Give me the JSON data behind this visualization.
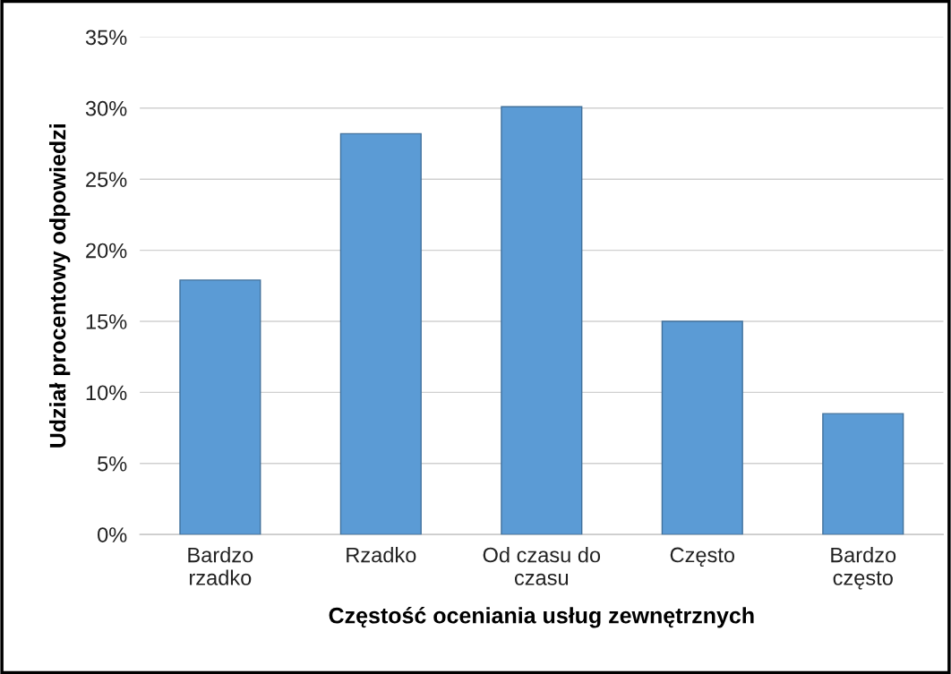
{
  "chart_data": {
    "type": "bar",
    "xlabel": "Częstość oceniania usług zewnętrznych",
    "ylabel": "Udział procentowy odpowiedzi",
    "categories": [
      "Bardzo\nrzadko",
      "Rzadko",
      "Od czasu do\nczasu",
      "Często",
      "Bardzo\nczęsto"
    ],
    "values": [
      17.9,
      28.2,
      30.1,
      15.0,
      8.5
    ],
    "color": "#5b9bd5",
    "ylim": [
      0,
      35
    ],
    "yticks": [
      {
        "value": 0,
        "label": "0%"
      },
      {
        "value": 5,
        "label": "5%"
      },
      {
        "value": 10,
        "label": "10%"
      },
      {
        "value": 15,
        "label": "15%"
      },
      {
        "value": 20,
        "label": "20%"
      },
      {
        "value": 25,
        "label": "25%"
      },
      {
        "value": 30,
        "label": "30%"
      },
      {
        "value": 35,
        "label": "35%"
      }
    ],
    "grid": "y"
  }
}
